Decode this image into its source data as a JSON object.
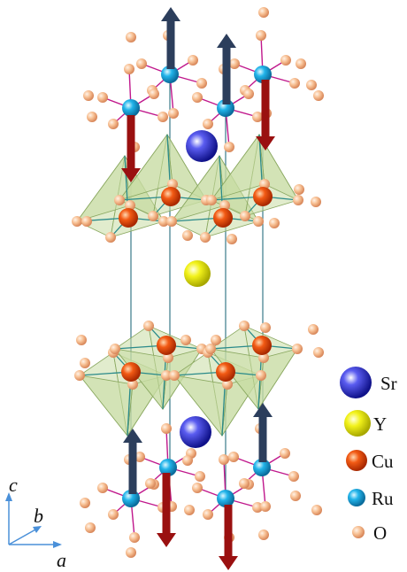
{
  "legend": {
    "items": [
      {
        "name": "Sr",
        "label": "Sr",
        "color": "#1f22c8"
      },
      {
        "name": "Y",
        "label": "Y",
        "color": "#e6e600"
      },
      {
        "name": "Cu",
        "label": "Cu",
        "color": "#f04a10"
      },
      {
        "name": "Ru",
        "label": "Ru",
        "color": "#1aa8e0"
      },
      {
        "name": "O",
        "label": "O",
        "color": "#f5b88a"
      }
    ]
  },
  "axes": {
    "c_label": "c",
    "b_label": "b",
    "a_label": "a",
    "axis_color": "#4a90d9"
  },
  "colors": {
    "bond_ru_o": "#c0188c",
    "bond_cu_o": "#2a8a8a",
    "pyramid_face": "#c9dca4",
    "pyramid_edge": "#8aa860",
    "cell_edge": "#3a7a8a",
    "spin_up": "#2c3e5c",
    "spin_down": "#9a1010"
  }
}
